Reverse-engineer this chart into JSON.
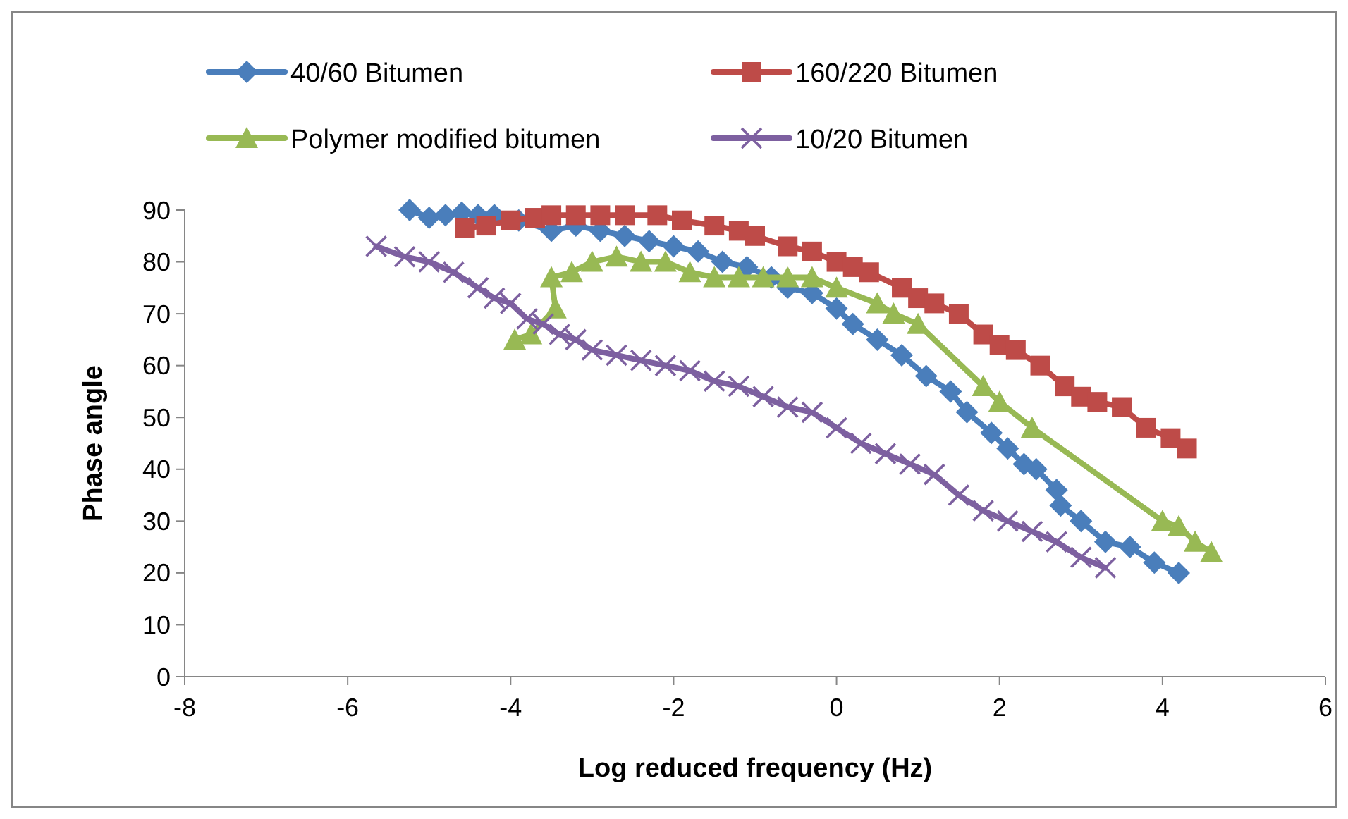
{
  "chart_data": {
    "type": "line",
    "xlabel": "Log reduced frequency (Hz)",
    "ylabel": "Phase angle",
    "xlim": [
      -8,
      6
    ],
    "xticks": [
      -8,
      -6,
      -4,
      -2,
      0,
      2,
      4,
      6
    ],
    "ylim": [
      0,
      90
    ],
    "yticks": [
      0,
      10,
      20,
      30,
      40,
      50,
      60,
      70,
      80,
      90
    ],
    "grid": false,
    "legend": "top",
    "series": [
      {
        "name": "40/60 Bitumen",
        "color": "#4a7ebb",
        "marker": "diamond",
        "x": [
          -5.24,
          -5.0,
          -4.8,
          -4.6,
          -4.4,
          -4.2,
          -3.9,
          -3.5,
          -3.2,
          -2.9,
          -2.6,
          -2.3,
          -2.0,
          -1.7,
          -1.4,
          -1.1,
          -0.8,
          -0.6,
          -0.3,
          0,
          0.2,
          0.5,
          0.8,
          1.1,
          1.4,
          1.6,
          1.9,
          2.1,
          2.3,
          2.45,
          2.7,
          2.75,
          3.0,
          3.3,
          3.6,
          3.9,
          4.2
        ],
        "values": [
          90,
          88.5,
          89,
          89.5,
          89,
          89,
          88,
          86,
          87,
          86,
          85,
          84,
          83,
          82,
          80,
          79,
          77,
          75,
          74,
          71,
          68,
          65,
          62,
          58,
          55,
          51,
          47,
          44,
          41,
          40,
          36,
          33,
          30,
          26,
          25,
          22,
          20
        ]
      },
      {
        "name": "160/220 Bitumen",
        "color": "#be4b48",
        "marker": "square",
        "x": [
          -4.56,
          -4.3,
          -4.0,
          -3.7,
          -3.5,
          -3.2,
          -2.9,
          -2.6,
          -2.2,
          -1.9,
          -1.5,
          -1.2,
          -1.0,
          -0.6,
          -0.3,
          0,
          0.2,
          0.4,
          0.8,
          1.0,
          1.2,
          1.5,
          1.8,
          2.0,
          2.2,
          2.5,
          2.8,
          3.0,
          3.2,
          3.5,
          3.8,
          4.1,
          4.3
        ],
        "values": [
          86.5,
          87,
          88,
          88.5,
          89,
          89,
          89,
          89,
          89,
          88,
          87,
          86,
          85,
          83,
          82,
          80,
          79,
          78,
          75,
          73,
          72,
          70,
          66,
          64,
          63,
          60,
          56,
          54,
          53,
          52,
          48,
          46,
          44
        ]
      },
      {
        "name": "Polymer modified bitumen",
        "color": "#98b954",
        "marker": "triangle",
        "x": [
          -3.95,
          -3.75,
          -3.45,
          -3.5,
          -3.25,
          -3.0,
          -2.7,
          -2.4,
          -2.1,
          -1.8,
          -1.5,
          -1.2,
          -0.9,
          -0.6,
          -0.3,
          0,
          0.5,
          0.7,
          1.0,
          1.8,
          2.0,
          2.4,
          4.0,
          4.2,
          4.4,
          4.6
        ],
        "values": [
          65,
          66,
          71,
          77,
          78,
          80,
          81,
          80,
          80,
          78,
          77,
          77,
          77,
          77,
          77,
          75,
          72,
          70,
          68,
          56,
          53,
          48,
          30,
          29,
          26,
          24
        ]
      },
      {
        "name": "10/20 Bitumen",
        "color": "#7d60a0",
        "marker": "cross",
        "x": [
          -5.65,
          -5.3,
          -5.0,
          -4.7,
          -4.4,
          -4.2,
          -4.0,
          -3.8,
          -3.6,
          -3.4,
          -3.2,
          -3.0,
          -2.7,
          -2.4,
          -2.1,
          -1.8,
          -1.5,
          -1.2,
          -0.9,
          -0.6,
          -0.3,
          0,
          0.3,
          0.6,
          0.9,
          1.2,
          1.5,
          1.8,
          2.1,
          2.4,
          2.7,
          3.0,
          3.3
        ],
        "values": [
          83,
          81,
          80,
          78,
          75,
          73,
          72,
          69,
          68,
          66,
          65,
          63,
          62,
          61,
          60,
          59,
          57,
          56,
          54,
          52,
          51,
          48,
          45,
          43,
          41,
          39,
          35,
          32,
          30,
          28,
          26,
          23,
          21
        ]
      }
    ]
  }
}
